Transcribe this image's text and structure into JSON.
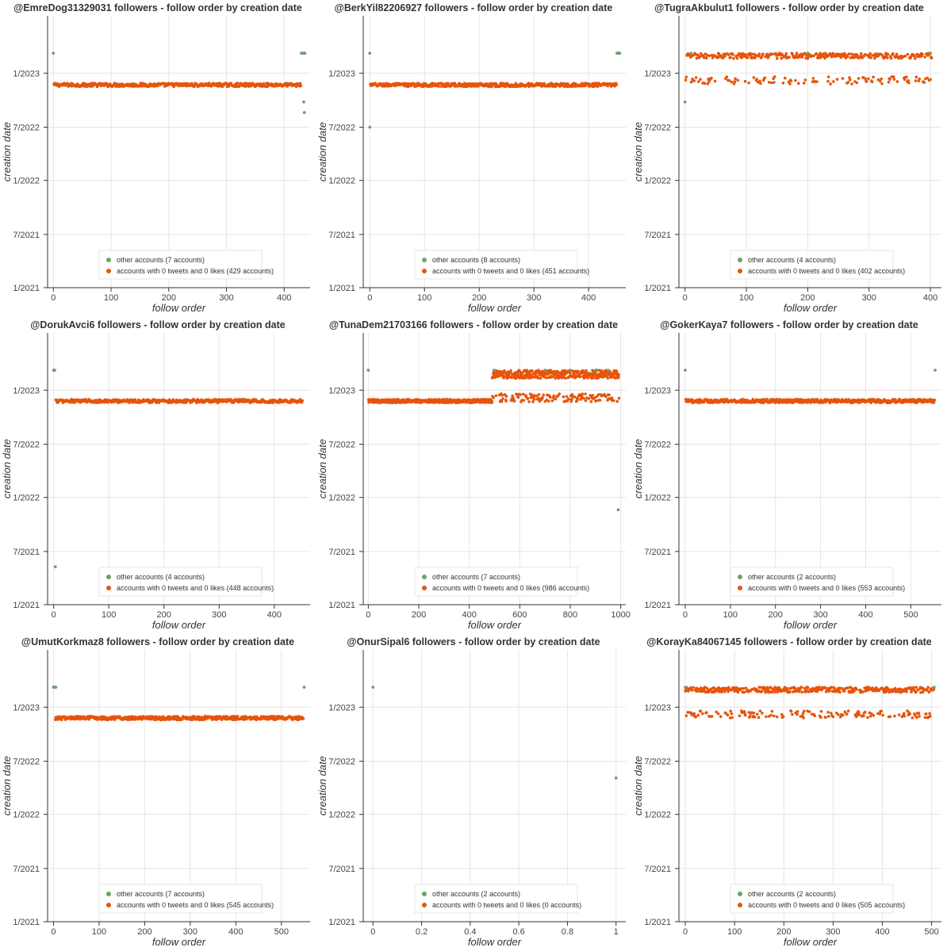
{
  "chart_data": [
    {
      "type": "scatter",
      "title": "@EmreDog31329031 followers - follow order by creation date",
      "xlabel": "follow order",
      "ylabel": "creation date",
      "xticks": [
        0,
        100,
        200,
        300,
        400
      ],
      "xlim": [
        -10,
        445
      ],
      "yticks": [
        "1/2021",
        "7/2021",
        "1/2022",
        "7/2022",
        "1/2023"
      ],
      "ylim": [
        "2021-01-01",
        "2023-07-15"
      ],
      "grid": true,
      "legend_position": "bottom-center",
      "colors": {
        "other": "#6ba36b",
        "zero": "#e6550d"
      },
      "series": [
        {
          "name": "other accounts (7 accounts)",
          "points": [
            [
              0,
              "2023-03-10"
            ],
            [
              430,
              "2023-03-10"
            ],
            [
              432,
              "2023-03-10"
            ],
            [
              434,
              "2023-03-10"
            ],
            [
              436,
              "2023-03-10"
            ],
            [
              434,
              "2022-09-25"
            ],
            [
              435,
              "2022-08-20"
            ]
          ]
        },
        {
          "name": "accounts with 0 tweets and 0 likes (429 accounts)",
          "band": {
            "from": 1,
            "to": 429,
            "date": "2022-11-22",
            "jitter_days": 6
          }
        }
      ]
    },
    {
      "type": "scatter",
      "title": "@BerkYil82206927 followers - follow order by creation date",
      "xlabel": "follow order",
      "ylabel": "creation date",
      "xticks": [
        0,
        100,
        200,
        300,
        400
      ],
      "xlim": [
        -12,
        468
      ],
      "yticks": [
        "1/2021",
        "7/2021",
        "1/2022",
        "7/2022",
        "1/2023"
      ],
      "ylim": [
        "2021-01-01",
        "2023-07-15"
      ],
      "grid": true,
      "legend_position": "bottom-center",
      "colors": {
        "other": "#6ba36b",
        "zero": "#e6550d"
      },
      "series": [
        {
          "name": "other accounts (8 accounts)",
          "points": [
            [
              0,
              "2023-03-10"
            ],
            [
              452,
              "2023-03-10"
            ],
            [
              453,
              "2023-03-10"
            ],
            [
              454,
              "2023-03-10"
            ],
            [
              455,
              "2023-03-10"
            ],
            [
              456,
              "2023-03-10"
            ],
            [
              457,
              "2023-03-10"
            ],
            [
              0,
              "2022-07-01"
            ]
          ]
        },
        {
          "name": "accounts with 0 tweets and 0 likes (451 accounts)",
          "band": {
            "from": 1,
            "to": 451,
            "date": "2022-11-22",
            "jitter_days": 6
          }
        }
      ]
    },
    {
      "type": "scatter",
      "title": "@TugraAkbulut1 followers - follow order by creation date",
      "xlabel": "follow order",
      "ylabel": "creation date",
      "xticks": [
        0,
        100,
        200,
        300,
        400
      ],
      "xlim": [
        -10,
        418
      ],
      "yticks": [
        "1/2021",
        "7/2021",
        "1/2022",
        "7/2022",
        "1/2023"
      ],
      "ylim": [
        "2021-01-01",
        "2023-07-15"
      ],
      "grid": true,
      "legend_position": "bottom-center",
      "colors": {
        "other": "#6ba36b",
        "zero": "#e6550d"
      },
      "series": [
        {
          "name": "other accounts (4 accounts)",
          "points": [
            [
              0,
              "2022-09-25"
            ],
            [
              10,
              "2023-03-10"
            ],
            [
              200,
              "2023-03-10"
            ],
            [
              400,
              "2023-03-10"
            ]
          ]
        },
        {
          "name": "accounts with 0 tweets and 0 likes (402 accounts)",
          "band": {
            "from": 1,
            "to": 402,
            "date": "2023-02-10",
            "bands": [
              [
                "2023-03-10",
                "2023-02-20"
              ],
              [
                "2022-12-20",
                "2022-11-25"
              ]
            ]
          }
        }
      ]
    },
    {
      "type": "scatter",
      "title": "@DorukAvci6 followers - follow order by creation date",
      "xlabel": "follow order",
      "ylabel": "creation date",
      "xticks": [
        0,
        100,
        200,
        300,
        400
      ],
      "xlim": [
        -11,
        465
      ],
      "yticks": [
        "1/2021",
        "7/2021",
        "1/2022",
        "7/2022",
        "1/2023"
      ],
      "ylim": [
        "2021-01-01",
        "2023-07-15"
      ],
      "grid": true,
      "legend_position": "bottom-center",
      "colors": {
        "other": "#6ba36b",
        "zero": "#e6550d"
      },
      "series": [
        {
          "name": "other accounts (4 accounts)",
          "points": [
            [
              0,
              "2023-03-10"
            ],
            [
              1,
              "2023-03-10"
            ],
            [
              2,
              "2023-03-10"
            ],
            [
              3,
              "2021-05-10"
            ]
          ]
        },
        {
          "name": "accounts with 0 tweets and 0 likes (448 accounts)",
          "band": {
            "from": 4,
            "to": 451,
            "date": "2022-11-25",
            "jitter_days": 6
          }
        }
      ]
    },
    {
      "type": "scatter",
      "title": "@TunaDem21703166 followers - follow order by creation date",
      "xlabel": "follow order",
      "ylabel": "creation date",
      "xticks": [
        0,
        200,
        400,
        600,
        800,
        1000
      ],
      "xlim": [
        -20,
        1020
      ],
      "yticks": [
        "1/2021",
        "7/2021",
        "1/2022",
        "7/2022",
        "1/2023"
      ],
      "ylim": [
        "2021-01-01",
        "2023-07-15"
      ],
      "grid": true,
      "legend_position": "bottom-center",
      "colors": {
        "other": "#6ba36b",
        "zero": "#e6550d"
      },
      "series": [
        {
          "name": "other accounts (7 accounts)",
          "points": [
            [
              0,
              "2023-03-10"
            ],
            [
              990,
              "2021-11-20"
            ],
            [
              500,
              "2023-03-10"
            ],
            [
              700,
              "2023-03-10"
            ],
            [
              800,
              "2023-03-10"
            ],
            [
              900,
              "2023-03-10"
            ],
            [
              950,
              "2023-03-10"
            ]
          ]
        },
        {
          "name": "accounts with 0 tweets and 0 likes (986 accounts)",
          "segments": [
            {
              "from": 1,
              "to": 490,
              "date": "2022-11-25",
              "jitter_days": 6
            },
            {
              "from": 491,
              "to": 993,
              "bands": [
                [
                  "2023-03-10",
                  "2023-02-10"
                ],
                [
                  "2022-12-20",
                  "2022-11-22"
                ]
              ]
            }
          ]
        }
      ]
    },
    {
      "type": "scatter",
      "title": "@GokerKaya7 followers - follow order by creation date",
      "xlabel": "follow order",
      "ylabel": "creation date",
      "xticks": [
        0,
        100,
        200,
        300,
        400,
        500
      ],
      "xlim": [
        -14,
        568
      ],
      "yticks": [
        "1/2021",
        "7/2021",
        "1/2022",
        "7/2022",
        "1/2023"
      ],
      "ylim": [
        "2021-01-01",
        "2023-07-15"
      ],
      "grid": true,
      "legend_position": "bottom-center",
      "colors": {
        "other": "#6ba36b",
        "zero": "#e6550d"
      },
      "series": [
        {
          "name": "other accounts (2 accounts)",
          "points": [
            [
              0,
              "2023-03-10"
            ],
            [
              554,
              "2023-03-10"
            ]
          ]
        },
        {
          "name": "accounts with 0 tweets and 0 likes (553 accounts)",
          "band": {
            "from": 1,
            "to": 553,
            "date": "2022-11-25",
            "jitter_days": 6
          }
        }
      ]
    },
    {
      "type": "scatter",
      "title": "@UmutKorkmaz8 followers - follow order by creation date",
      "xlabel": "follow order",
      "ylabel": "creation date",
      "xticks": [
        0,
        100,
        200,
        300,
        400,
        500
      ],
      "xlim": [
        -13,
        563
      ],
      "yticks": [
        "1/2021",
        "7/2021",
        "1/2022",
        "7/2022",
        "1/2023"
      ],
      "ylim": [
        "2021-01-01",
        "2023-07-15"
      ],
      "grid": true,
      "legend_position": "bottom-center",
      "colors": {
        "other": "#6ba36b",
        "zero": "#e6550d"
      },
      "series": [
        {
          "name": "other accounts (7 accounts)",
          "points": [
            [
              0,
              "2023-03-10"
            ],
            [
              1,
              "2023-03-10"
            ],
            [
              2,
              "2023-03-10"
            ],
            [
              3,
              "2023-03-10"
            ],
            [
              4,
              "2023-03-10"
            ],
            [
              5,
              "2023-03-10"
            ],
            [
              550,
              "2023-03-10"
            ]
          ]
        },
        {
          "name": "accounts with 0 tweets and 0 likes (545 accounts)",
          "band": {
            "from": 4,
            "to": 548,
            "date": "2022-11-25",
            "jitter_days": 6
          }
        }
      ]
    },
    {
      "type": "scatter",
      "title": "@OnurSipal6 followers - follow order by creation date",
      "xlabel": "follow order",
      "ylabel": "creation date",
      "xticks": [
        0,
        0.2,
        0.4,
        0.6,
        0.8,
        1
      ],
      "xlim": [
        -0.04,
        1.04
      ],
      "yticks": [
        "1/2021",
        "7/2021",
        "1/2022",
        "7/2022",
        "1/2023"
      ],
      "ylim": [
        "2021-01-01",
        "2023-07-15"
      ],
      "grid": true,
      "legend_position": "bottom-center",
      "colors": {
        "other": "#6ba36b",
        "zero": "#e6550d"
      },
      "series": [
        {
          "name": "other accounts (2 accounts)",
          "points": [
            [
              0,
              "2023-03-10"
            ],
            [
              1,
              "2022-05-05"
            ]
          ]
        },
        {
          "name": "accounts with 0 tweets and 0 likes (0 accounts)"
        }
      ]
    },
    {
      "type": "scatter",
      "title": "@KorayKa84067145 followers - follow order by creation date",
      "xlabel": "follow order",
      "ylabel": "creation date",
      "xticks": [
        0,
        100,
        200,
        300,
        400,
        500
      ],
      "xlim": [
        -13,
        520
      ],
      "yticks": [
        "1/2021",
        "7/2021",
        "1/2022",
        "7/2022",
        "1/2023"
      ],
      "ylim": [
        "2021-01-01",
        "2023-07-15"
      ],
      "grid": true,
      "legend_position": "bottom-center",
      "colors": {
        "other": "#6ba36b",
        "zero": "#e6550d"
      },
      "series": [
        {
          "name": "other accounts (2 accounts)",
          "points": [
            [
              0,
              "2023-03-10"
            ],
            [
              505,
              "2023-03-10"
            ]
          ]
        },
        {
          "name": "accounts with 0 tweets and 0 likes (505 accounts)",
          "band": {
            "from": 0,
            "to": 505,
            "date": "2023-02-10",
            "bands": [
              [
                "2023-03-10",
                "2023-02-20"
              ],
              [
                "2022-12-20",
                "2022-11-25"
              ]
            ]
          }
        }
      ]
    }
  ]
}
